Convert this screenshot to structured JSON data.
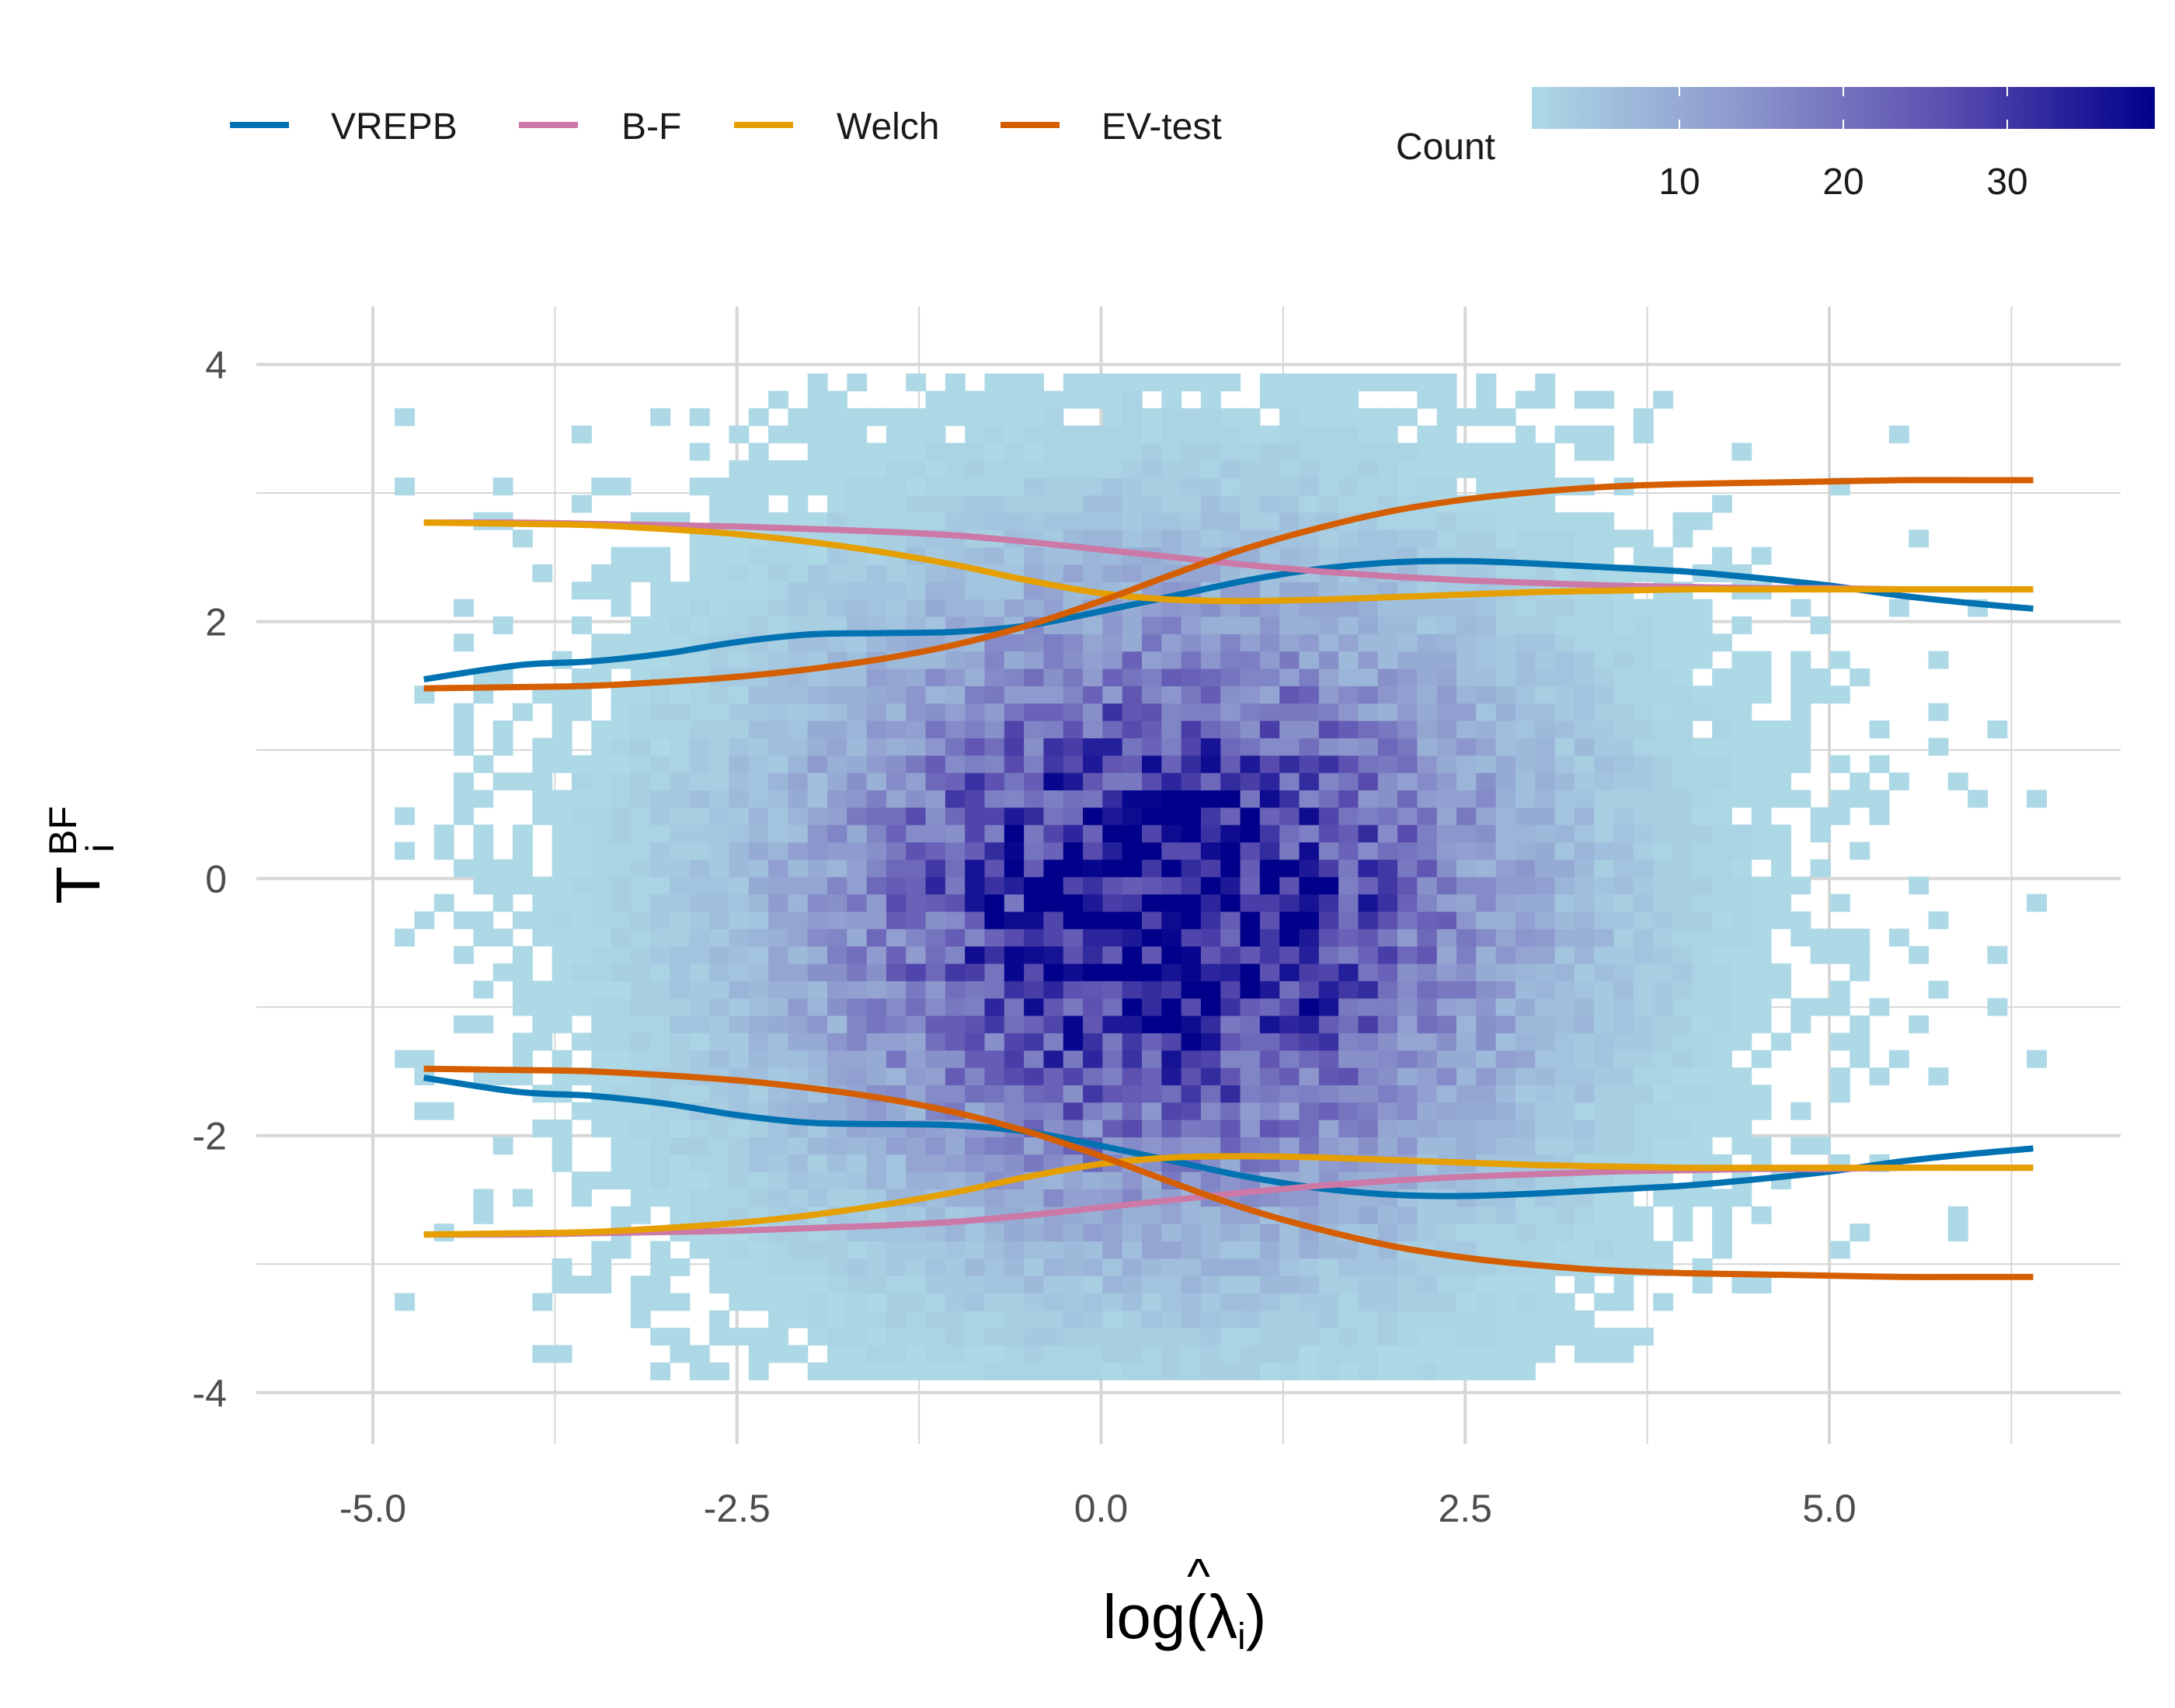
{
  "chart_data": {
    "type": "heatmap",
    "subtype": "2d-binned-count-with-lines",
    "title": "",
    "xlabel": "log(λ̂i)",
    "ylabel": "T_i^BF",
    "xlabel_parts": {
      "prefix": "log(",
      "hat": "^",
      "symbol": "λ",
      "subscript": "i",
      "suffix": ")"
    },
    "ylabel_parts": {
      "base": "T",
      "superscript": "BF",
      "subscript": "i"
    },
    "xlim": [
      -5.8,
      7.0
    ],
    "ylim": [
      -4.4,
      4.45
    ],
    "grid": true,
    "x_ticks": [
      -5.0,
      -2.5,
      0.0,
      2.5,
      5.0
    ],
    "x_tick_labels": [
      "-5.0",
      "-2.5",
      "0.0",
      "2.5",
      "5.0"
    ],
    "y_ticks": [
      -4,
      -2,
      0,
      2,
      4
    ],
    "y_tick_labels": [
      "-4",
      "-2",
      "0",
      "2",
      "4"
    ],
    "legend_position": "top",
    "colorbar": {
      "title": "Count",
      "range": [
        1,
        39
      ],
      "ticks": [
        10,
        20,
        30
      ],
      "tick_labels": [
        "10",
        "20",
        "30"
      ],
      "colors": [
        "#add8e6",
        "#8d98cd",
        "#5c4fb0",
        "#00008b"
      ]
    },
    "heatmap": {
      "x_range": [
        -4.85,
        6.4
      ],
      "y_range": [
        -3.9,
        3.9
      ],
      "center": [
        0.35,
        -0.3
      ],
      "peak_count": 39
    },
    "series": [
      {
        "name": "VREPB",
        "color": "#0072b2",
        "x": [
          -4.65,
          -4.0,
          -3.5,
          -3.0,
          -2.5,
          -2.0,
          -1.5,
          -1.0,
          -0.5,
          0.0,
          0.5,
          1.0,
          1.5,
          2.0,
          2.5,
          3.0,
          3.5,
          4.0,
          4.5,
          5.0,
          5.5,
          6.0,
          6.4
        ],
        "upper": [
          1.55,
          1.66,
          1.69,
          1.75,
          1.84,
          1.9,
          1.91,
          1.92,
          1.97,
          2.08,
          2.2,
          2.32,
          2.41,
          2.46,
          2.47,
          2.45,
          2.42,
          2.39,
          2.34,
          2.28,
          2.2,
          2.14,
          2.1
        ],
        "lower": [
          -1.55,
          -1.66,
          -1.69,
          -1.75,
          -1.84,
          -1.9,
          -1.91,
          -1.92,
          -1.97,
          -2.08,
          -2.2,
          -2.32,
          -2.41,
          -2.46,
          -2.47,
          -2.45,
          -2.42,
          -2.39,
          -2.34,
          -2.28,
          -2.2,
          -2.14,
          -2.1
        ]
      },
      {
        "name": "B-F",
        "color": "#cc79a7",
        "x": [
          -4.65,
          -4.0,
          -3.5,
          -3.0,
          -2.5,
          -2.0,
          -1.5,
          -1.0,
          -0.5,
          0.0,
          0.5,
          1.0,
          1.5,
          2.0,
          2.5,
          3.0,
          3.5,
          4.0,
          4.5,
          5.0,
          5.5,
          6.0,
          6.4
        ],
        "upper": [
          2.77,
          2.77,
          2.76,
          2.75,
          2.74,
          2.72,
          2.7,
          2.67,
          2.62,
          2.56,
          2.5,
          2.44,
          2.39,
          2.35,
          2.32,
          2.3,
          2.28,
          2.27,
          2.26,
          2.26,
          2.25,
          2.25,
          2.25
        ],
        "lower": [
          -2.77,
          -2.77,
          -2.76,
          -2.75,
          -2.74,
          -2.72,
          -2.7,
          -2.67,
          -2.62,
          -2.56,
          -2.5,
          -2.44,
          -2.39,
          -2.35,
          -2.32,
          -2.3,
          -2.28,
          -2.27,
          -2.26,
          -2.26,
          -2.25,
          -2.25,
          -2.25
        ]
      },
      {
        "name": "Welch",
        "color": "#e69f00",
        "x": [
          -4.65,
          -4.0,
          -3.5,
          -3.0,
          -2.5,
          -2.0,
          -1.5,
          -1.0,
          -0.5,
          0.0,
          0.5,
          1.0,
          1.5,
          2.0,
          2.5,
          3.0,
          3.5,
          4.0,
          4.5,
          5.0,
          5.5,
          6.0,
          6.4
        ],
        "upper": [
          2.77,
          2.76,
          2.75,
          2.72,
          2.68,
          2.62,
          2.54,
          2.44,
          2.32,
          2.22,
          2.17,
          2.16,
          2.17,
          2.19,
          2.21,
          2.23,
          2.24,
          2.25,
          2.25,
          2.25,
          2.25,
          2.25,
          2.25
        ],
        "lower": [
          -2.77,
          -2.76,
          -2.75,
          -2.72,
          -2.68,
          -2.62,
          -2.54,
          -2.44,
          -2.32,
          -2.22,
          -2.17,
          -2.16,
          -2.17,
          -2.19,
          -2.21,
          -2.23,
          -2.24,
          -2.25,
          -2.25,
          -2.25,
          -2.25,
          -2.25,
          -2.25
        ]
      },
      {
        "name": "EV-test",
        "color": "#d55e00",
        "x": [
          -4.65,
          -4.0,
          -3.5,
          -3.0,
          -2.5,
          -2.0,
          -1.5,
          -1.0,
          -0.5,
          0.0,
          0.5,
          1.0,
          1.5,
          2.0,
          2.5,
          3.0,
          3.5,
          4.0,
          4.5,
          5.0,
          5.5,
          6.0,
          6.4
        ],
        "upper": [
          1.48,
          1.49,
          1.5,
          1.53,
          1.57,
          1.63,
          1.71,
          1.82,
          1.97,
          2.16,
          2.37,
          2.57,
          2.73,
          2.86,
          2.95,
          3.01,
          3.05,
          3.07,
          3.08,
          3.09,
          3.1,
          3.1,
          3.1
        ],
        "lower": [
          -1.48,
          -1.49,
          -1.5,
          -1.53,
          -1.57,
          -1.63,
          -1.71,
          -1.82,
          -1.97,
          -2.16,
          -2.37,
          -2.57,
          -2.73,
          -2.86,
          -2.95,
          -3.01,
          -3.05,
          -3.07,
          -3.08,
          -3.09,
          -3.1,
          -3.1,
          -3.1
        ]
      }
    ]
  }
}
